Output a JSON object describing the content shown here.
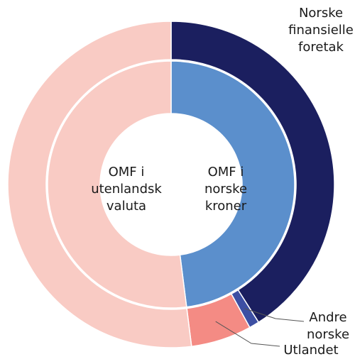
{
  "chart_data": {
    "type": "nested-donut",
    "inner": {
      "categories": [
        "OMF i\nnorske\nkroner",
        "OMF i\nutenlandsk\nvaluta"
      ],
      "values": [
        48,
        52
      ],
      "colors": [
        "#5b8fcc",
        "#f9cbc4"
      ]
    },
    "outer": {
      "categories": [
        "Norske\nfinansielle\nforetak",
        "Andre\nnorske",
        "Utlandet",
        null
      ],
      "values": [
        41,
        1,
        6,
        52
      ],
      "colors": [
        "#1b1f5f",
        "#3d4fa3",
        "#f48b84",
        "#f9cbc4"
      ]
    }
  }
}
